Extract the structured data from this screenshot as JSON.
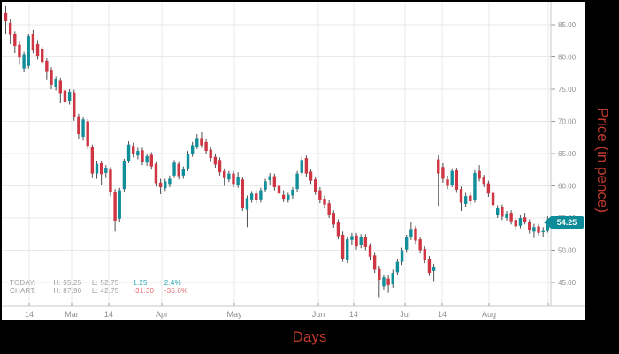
{
  "chart_data": {
    "type": "candlestick",
    "title": "",
    "xlabel": "Days",
    "ylabel": "Price (in pence)",
    "ylim": [
      42.5,
      88
    ],
    "grid": true,
    "y_ticks": [
      {
        "value": 85,
        "label": "85.00"
      },
      {
        "value": 80,
        "label": "80.00"
      },
      {
        "value": 75,
        "label": "75.00"
      },
      {
        "value": 70,
        "label": "70.00"
      },
      {
        "value": 65,
        "label": "65.00"
      },
      {
        "value": 60,
        "label": "60.00"
      },
      {
        "value": 55,
        "label": "55.00"
      },
      {
        "value": 50,
        "label": "50.00"
      },
      {
        "value": 45,
        "label": "45.00"
      }
    ],
    "x_ticks": [
      {
        "label": "14",
        "pos": 33
      },
      {
        "label": "Mar",
        "pos": 81
      },
      {
        "label": "14",
        "pos": 123
      },
      {
        "label": "Apr",
        "pos": 183
      },
      {
        "label": "May",
        "pos": 265
      },
      {
        "label": "Jun",
        "pos": 360
      },
      {
        "label": "14",
        "pos": 400
      },
      {
        "label": "Jul",
        "pos": 458
      },
      {
        "label": "14",
        "pos": 500
      },
      {
        "label": "Aug",
        "pos": 553
      },
      {
        "label": "",
        "pos": 620
      }
    ],
    "last_price_label": "54.25",
    "ohlc_fields": [
      "open",
      "high",
      "low",
      "close"
    ],
    "candles": [
      [
        86.8,
        87.9,
        83.5,
        85.55
      ],
      [
        85.3,
        85.9,
        82.0,
        83.4
      ],
      [
        83.6,
        84.0,
        80.6,
        81.7
      ],
      [
        81.9,
        82.4,
        78.8,
        79.9
      ],
      [
        78.2,
        80.8,
        77.6,
        80.4
      ],
      [
        78.6,
        83.6,
        78.2,
        83.2
      ],
      [
        83.6,
        84.2,
        80.6,
        81.0
      ],
      [
        82.0,
        82.6,
        79.6,
        80.1
      ],
      [
        81.2,
        81.6,
        78.8,
        79.2
      ],
      [
        79.4,
        79.8,
        76.4,
        77.8
      ],
      [
        78.0,
        78.4,
        75.0,
        75.7
      ],
      [
        75.4,
        77.0,
        74.8,
        76.6
      ],
      [
        76.3,
        76.8,
        72.8,
        74.4
      ],
      [
        74.8,
        75.2,
        71.8,
        73.0
      ],
      [
        73.2,
        75.0,
        72.6,
        74.6
      ],
      [
        74.5,
        74.9,
        70.1,
        70.6
      ],
      [
        70.8,
        71.2,
        67.2,
        68.0
      ],
      [
        67.6,
        70.7,
        67.0,
        70.3
      ],
      [
        70.0,
        70.4,
        65.7,
        66.2
      ],
      [
        66.0,
        66.4,
        61.2,
        61.9
      ],
      [
        61.9,
        63.9,
        61.1,
        63.4
      ],
      [
        63.5,
        63.9,
        60.2,
        61.8
      ],
      [
        62.0,
        63.2,
        61.2,
        62.8
      ],
      [
        62.5,
        62.9,
        58.4,
        59.1
      ],
      [
        59.0,
        59.5,
        52.9,
        54.6
      ],
      [
        54.9,
        59.7,
        54.3,
        59.3
      ],
      [
        59.5,
        64.2,
        59.1,
        63.9
      ],
      [
        63.9,
        66.9,
        63.5,
        66.4
      ],
      [
        66.2,
        66.7,
        64.4,
        64.9
      ],
      [
        64.7,
        65.9,
        64.1,
        65.4
      ],
      [
        65.5,
        65.9,
        63.2,
        63.7
      ],
      [
        63.6,
        65.0,
        63.1,
        64.6
      ],
      [
        64.8,
        65.2,
        62.5,
        63.0
      ],
      [
        63.4,
        63.8,
        59.9,
        60.4
      ],
      [
        60.5,
        61.1,
        58.7,
        59.8
      ],
      [
        59.6,
        61.1,
        59.2,
        60.7
      ],
      [
        60.3,
        61.6,
        59.8,
        61.1
      ],
      [
        61.6,
        64.0,
        61.2,
        63.6
      ],
      [
        63.4,
        63.8,
        61.0,
        61.5
      ],
      [
        61.6,
        63.0,
        61.1,
        62.6
      ],
      [
        62.7,
        65.4,
        62.3,
        65.0
      ],
      [
        65.0,
        66.8,
        64.5,
        66.3
      ],
      [
        66.1,
        68.0,
        65.7,
        67.4
      ],
      [
        67.4,
        68.3,
        65.9,
        66.3
      ],
      [
        66.8,
        67.2,
        64.9,
        65.4
      ],
      [
        65.6,
        66.0,
        63.8,
        64.3
      ],
      [
        64.5,
        64.9,
        62.8,
        63.3
      ],
      [
        64.0,
        64.4,
        61.6,
        62.1
      ],
      [
        62.3,
        62.7,
        60.0,
        61.2
      ],
      [
        61.0,
        62.3,
        60.6,
        61.9
      ],
      [
        61.9,
        62.3,
        59.8,
        60.3
      ],
      [
        60.1,
        62.1,
        59.7,
        61.3
      ],
      [
        61.0,
        61.4,
        56.1,
        56.5
      ],
      [
        56.3,
        58.5,
        53.6,
        58.1
      ],
      [
        57.9,
        59.2,
        57.4,
        58.8
      ],
      [
        58.8,
        59.3,
        57.3,
        57.8
      ],
      [
        57.9,
        59.7,
        57.4,
        59.3
      ],
      [
        59.4,
        61.1,
        59.0,
        60.7
      ],
      [
        60.9,
        62.0,
        60.1,
        61.5
      ],
      [
        61.5,
        61.9,
        59.3,
        59.8
      ],
      [
        60.0,
        60.4,
        58.3,
        58.8
      ],
      [
        58.6,
        59.3,
        57.5,
        58.0
      ],
      [
        57.9,
        58.9,
        57.4,
        58.6
      ],
      [
        58.5,
        59.8,
        58.0,
        59.4
      ],
      [
        59.5,
        62.3,
        59.1,
        61.9
      ],
      [
        62.0,
        64.5,
        61.6,
        64.0
      ],
      [
        64.3,
        64.7,
        61.4,
        61.9
      ],
      [
        62.2,
        62.6,
        60.3,
        60.8
      ],
      [
        61.0,
        61.4,
        58.6,
        59.1
      ],
      [
        59.3,
        59.8,
        57.3,
        57.8
      ],
      [
        58.0,
        58.5,
        56.5,
        57.1
      ],
      [
        57.3,
        57.8,
        55.0,
        55.5
      ],
      [
        55.8,
        56.2,
        53.5,
        54.0
      ],
      [
        54.3,
        54.8,
        51.7,
        52.2
      ],
      [
        52.4,
        52.9,
        48.2,
        48.7
      ],
      [
        48.5,
        52.1,
        48.0,
        51.7
      ],
      [
        51.6,
        52.7,
        50.9,
        52.2
      ],
      [
        52.3,
        52.7,
        50.1,
        50.6
      ],
      [
        50.8,
        52.5,
        50.3,
        52.0
      ],
      [
        52.1,
        52.5,
        50.0,
        50.5
      ],
      [
        50.7,
        51.1,
        48.5,
        49.0
      ],
      [
        49.2,
        49.6,
        46.5,
        47.0
      ],
      [
        47.1,
        47.6,
        42.75,
        45.4
      ],
      [
        44.4,
        46.2,
        43.8,
        45.8
      ],
      [
        45.6,
        46.1,
        43.4,
        44.6
      ],
      [
        44.7,
        47.0,
        44.2,
        46.5
      ],
      [
        46.6,
        48.7,
        46.1,
        48.2
      ],
      [
        48.2,
        50.4,
        47.7,
        50.0
      ],
      [
        50.1,
        52.4,
        49.6,
        52.0
      ],
      [
        52.1,
        54.3,
        51.6,
        53.3
      ],
      [
        53.4,
        53.8,
        51.0,
        51.5
      ],
      [
        51.7,
        52.1,
        49.5,
        50.0
      ],
      [
        50.2,
        50.6,
        48.0,
        48.5
      ],
      [
        48.7,
        49.1,
        46.0,
        46.5
      ],
      [
        46.8,
        47.9,
        45.2,
        47.4
      ],
      [
        64.1,
        64.7,
        56.9,
        61.9
      ],
      [
        62.9,
        63.5,
        60.5,
        61.1
      ],
      [
        61.0,
        61.6,
        59.5,
        60.0
      ],
      [
        60.2,
        62.7,
        59.8,
        62.3
      ],
      [
        62.4,
        62.8,
        58.9,
        59.4
      ],
      [
        59.5,
        59.9,
        56.1,
        57.4
      ],
      [
        57.2,
        58.9,
        56.7,
        58.4
      ],
      [
        58.5,
        58.9,
        57.1,
        57.6
      ],
      [
        57.8,
        62.4,
        57.4,
        62.0
      ],
      [
        62.3,
        63.2,
        60.7,
        61.1
      ],
      [
        61.3,
        61.7,
        59.8,
        60.3
      ],
      [
        60.4,
        60.8,
        58.3,
        58.8
      ],
      [
        58.9,
        59.3,
        56.4,
        57.0
      ],
      [
        55.5,
        57.0,
        55.0,
        56.5
      ],
      [
        56.7,
        57.1,
        54.7,
        55.2
      ],
      [
        55.0,
        56.1,
        54.6,
        55.7
      ],
      [
        55.8,
        56.2,
        54.0,
        54.5
      ],
      [
        54.7,
        55.1,
        53.1,
        53.7
      ],
      [
        53.8,
        55.4,
        53.4,
        55.0
      ],
      [
        55.1,
        55.8,
        54.0,
        54.4
      ],
      [
        54.4,
        54.8,
        52.6,
        53.1
      ],
      [
        52.9,
        54.1,
        51.9,
        53.6
      ],
      [
        53.7,
        54.1,
        52.3,
        52.7
      ],
      [
        52.8,
        53.6,
        52.0,
        53.0
      ],
      [
        53.0,
        55.25,
        52.75,
        54.25
      ]
    ]
  },
  "legend": {
    "rows": [
      {
        "label": "TODAY:",
        "high": "H: 55.25",
        "low": "L: 52.75",
        "change": "1.25",
        "pct": "2.4%",
        "direction": "up"
      },
      {
        "label": "CHART:",
        "high": "H: 87.90",
        "low": "L: 42.75",
        "change": "-31.30",
        "pct": "-36.6%",
        "direction": "down"
      }
    ]
  },
  "colors": {
    "candle_up": "#108e9a",
    "candle_down": "#cd3642",
    "wick": "#4d4d4d",
    "grid": "#e9e9eb",
    "axis": "#c9c9c9",
    "tick": "#999999",
    "tick_text": "#8f8f8f",
    "axis_title": "#bf3a2c",
    "badge_bg": "#0e8c99"
  }
}
